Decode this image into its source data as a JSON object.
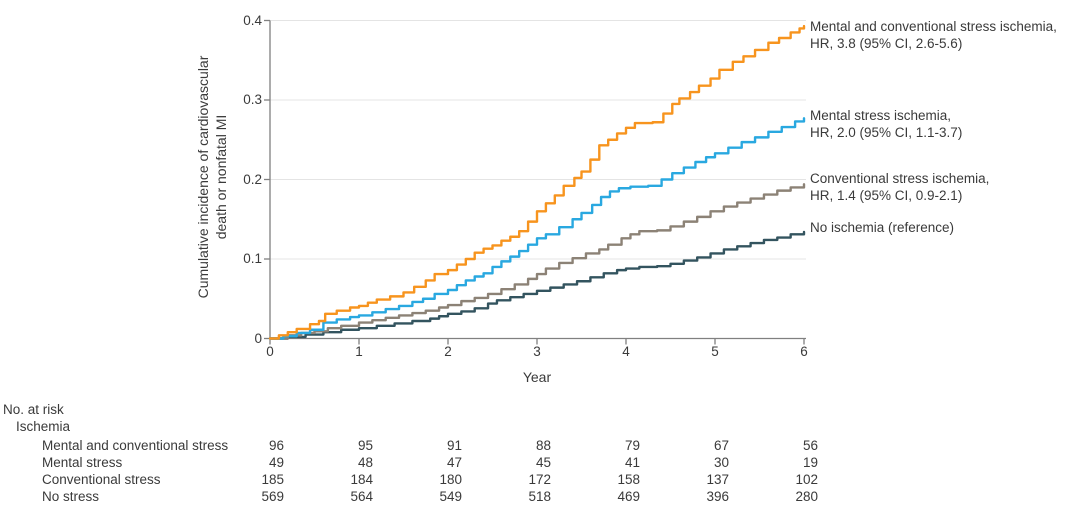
{
  "colors": {
    "mental_and_conventional": "#F7941E",
    "mental": "#29A8E0",
    "conventional": "#8C8276",
    "no_ischemia": "#33545F",
    "grid": "#E4E4E4",
    "axis": "#808080",
    "text": "#3A3A3A"
  },
  "chart_data": {
    "type": "line",
    "subtype": "cumulative-incidence-step-curves",
    "title": "",
    "xlabel": "Year",
    "ylabel": "Cumulative incidence of cardiovascular death or nonfatal MI",
    "ylabel_lines": [
      "Cumulative incidence of cardiovascular",
      "death or nonfatal MI"
    ],
    "xlim": [
      0,
      6
    ],
    "ylim": [
      0,
      0.4
    ],
    "x_ticks": [
      0,
      1,
      2,
      3,
      4,
      5,
      6
    ],
    "x_tick_labels": [
      "0",
      "1",
      "2",
      "3",
      "4",
      "5",
      "6"
    ],
    "y_ticks": [
      0,
      0.1,
      0.2,
      0.3,
      0.4
    ],
    "y_tick_labels": [
      "0",
      "0.1",
      "0.2",
      "0.3",
      "0.4"
    ],
    "grid": "horizontal",
    "legend_position": "right of curve ends",
    "series": [
      {
        "name": "Mental and conventional stress ischemia",
        "legend_lines": [
          "Mental and conventional stress ischemia,",
          "HR, 3.8 (95% CI, 2.6-5.6)"
        ],
        "hr": "3.8",
        "ci": "2.6-5.6",
        "color": "#F7941E",
        "points": [
          [
            0,
            0
          ],
          [
            0.1,
            0.004
          ],
          [
            0.2,
            0.008
          ],
          [
            0.3,
            0.012
          ],
          [
            0.45,
            0.018
          ],
          [
            0.55,
            0.022
          ],
          [
            0.62,
            0.031
          ],
          [
            0.75,
            0.035
          ],
          [
            0.9,
            0.039
          ],
          [
            1.0,
            0.041
          ],
          [
            1.1,
            0.045
          ],
          [
            1.2,
            0.049
          ],
          [
            1.35,
            0.053
          ],
          [
            1.5,
            0.058
          ],
          [
            1.62,
            0.065
          ],
          [
            1.75,
            0.073
          ],
          [
            1.85,
            0.081
          ],
          [
            2.0,
            0.086
          ],
          [
            2.1,
            0.093
          ],
          [
            2.2,
            0.1
          ],
          [
            2.3,
            0.108
          ],
          [
            2.4,
            0.113
          ],
          [
            2.5,
            0.117
          ],
          [
            2.6,
            0.123
          ],
          [
            2.7,
            0.128
          ],
          [
            2.8,
            0.135
          ],
          [
            2.9,
            0.147
          ],
          [
            3.0,
            0.16
          ],
          [
            3.1,
            0.17
          ],
          [
            3.2,
            0.18
          ],
          [
            3.3,
            0.192
          ],
          [
            3.42,
            0.202
          ],
          [
            3.5,
            0.21
          ],
          [
            3.6,
            0.225
          ],
          [
            3.7,
            0.243
          ],
          [
            3.8,
            0.25
          ],
          [
            3.9,
            0.258
          ],
          [
            4.0,
            0.265
          ],
          [
            4.1,
            0.271
          ],
          [
            4.3,
            0.272
          ],
          [
            4.42,
            0.283
          ],
          [
            4.52,
            0.295
          ],
          [
            4.6,
            0.302
          ],
          [
            4.72,
            0.31
          ],
          [
            4.82,
            0.318
          ],
          [
            4.95,
            0.327
          ],
          [
            5.05,
            0.338
          ],
          [
            5.2,
            0.348
          ],
          [
            5.32,
            0.355
          ],
          [
            5.45,
            0.363
          ],
          [
            5.6,
            0.372
          ],
          [
            5.72,
            0.378
          ],
          [
            5.85,
            0.385
          ],
          [
            5.95,
            0.39
          ],
          [
            6.0,
            0.393
          ]
        ]
      },
      {
        "name": "Mental stress ischemia",
        "legend_lines": [
          "Mental stress ischemia,",
          "HR, 2.0 (95% CI, 1.1-3.7)"
        ],
        "hr": "2.0",
        "ci": "1.1-3.7",
        "color": "#29A8E0",
        "points": [
          [
            0,
            0
          ],
          [
            0.15,
            0.003
          ],
          [
            0.3,
            0.007
          ],
          [
            0.45,
            0.011
          ],
          [
            0.6,
            0.02
          ],
          [
            0.75,
            0.024
          ],
          [
            0.9,
            0.027
          ],
          [
            1.0,
            0.029
          ],
          [
            1.15,
            0.033
          ],
          [
            1.3,
            0.037
          ],
          [
            1.45,
            0.041
          ],
          [
            1.6,
            0.046
          ],
          [
            1.72,
            0.05
          ],
          [
            1.85,
            0.056
          ],
          [
            2.0,
            0.061
          ],
          [
            2.1,
            0.067
          ],
          [
            2.2,
            0.073
          ],
          [
            2.3,
            0.078
          ],
          [
            2.4,
            0.082
          ],
          [
            2.5,
            0.09
          ],
          [
            2.6,
            0.097
          ],
          [
            2.7,
            0.103
          ],
          [
            2.8,
            0.11
          ],
          [
            2.9,
            0.118
          ],
          [
            3.0,
            0.126
          ],
          [
            3.1,
            0.131
          ],
          [
            3.25,
            0.14
          ],
          [
            3.4,
            0.15
          ],
          [
            3.5,
            0.158
          ],
          [
            3.62,
            0.168
          ],
          [
            3.72,
            0.178
          ],
          [
            3.82,
            0.185
          ],
          [
            3.92,
            0.189
          ],
          [
            4.05,
            0.191
          ],
          [
            4.25,
            0.192
          ],
          [
            4.4,
            0.2
          ],
          [
            4.52,
            0.208
          ],
          [
            4.65,
            0.215
          ],
          [
            4.78,
            0.222
          ],
          [
            4.9,
            0.228
          ],
          [
            5.0,
            0.233
          ],
          [
            5.15,
            0.24
          ],
          [
            5.3,
            0.247
          ],
          [
            5.45,
            0.253
          ],
          [
            5.6,
            0.26
          ],
          [
            5.75,
            0.266
          ],
          [
            5.9,
            0.273
          ],
          [
            6.0,
            0.277
          ]
        ]
      },
      {
        "name": "Conventional stress ischemia",
        "legend_lines": [
          "Conventional stress ischemia,",
          "HR, 1.4 (95% CI, 0.9-2.1)"
        ],
        "hr": "1.4",
        "ci": "0.9-2.1",
        "color": "#8C8276",
        "points": [
          [
            0,
            0
          ],
          [
            0.2,
            0.004
          ],
          [
            0.35,
            0.007
          ],
          [
            0.5,
            0.009
          ],
          [
            0.65,
            0.013
          ],
          [
            0.8,
            0.016
          ],
          [
            1.0,
            0.02
          ],
          [
            1.15,
            0.023
          ],
          [
            1.3,
            0.026
          ],
          [
            1.45,
            0.029
          ],
          [
            1.6,
            0.032
          ],
          [
            1.75,
            0.035
          ],
          [
            1.9,
            0.039
          ],
          [
            2.0,
            0.042
          ],
          [
            2.15,
            0.047
          ],
          [
            2.3,
            0.051
          ],
          [
            2.45,
            0.056
          ],
          [
            2.6,
            0.062
          ],
          [
            2.75,
            0.068
          ],
          [
            2.9,
            0.075
          ],
          [
            3.0,
            0.081
          ],
          [
            3.1,
            0.088
          ],
          [
            3.25,
            0.095
          ],
          [
            3.4,
            0.101
          ],
          [
            3.55,
            0.107
          ],
          [
            3.7,
            0.112
          ],
          [
            3.8,
            0.118
          ],
          [
            3.95,
            0.126
          ],
          [
            4.05,
            0.131
          ],
          [
            4.15,
            0.135
          ],
          [
            4.35,
            0.136
          ],
          [
            4.5,
            0.141
          ],
          [
            4.65,
            0.147
          ],
          [
            4.8,
            0.153
          ],
          [
            4.95,
            0.16
          ],
          [
            5.1,
            0.166
          ],
          [
            5.25,
            0.171
          ],
          [
            5.4,
            0.176
          ],
          [
            5.55,
            0.181
          ],
          [
            5.7,
            0.186
          ],
          [
            5.85,
            0.19
          ],
          [
            6.0,
            0.194
          ]
        ]
      },
      {
        "name": "No ischemia (reference)",
        "legend_lines": [
          "No ischemia (reference)"
        ],
        "hr": "",
        "ci": "",
        "color": "#33545F",
        "points": [
          [
            0,
            0
          ],
          [
            0.2,
            0.002
          ],
          [
            0.4,
            0.005
          ],
          [
            0.6,
            0.008
          ],
          [
            0.8,
            0.011
          ],
          [
            1.0,
            0.013
          ],
          [
            1.2,
            0.016
          ],
          [
            1.4,
            0.019
          ],
          [
            1.6,
            0.022
          ],
          [
            1.8,
            0.025
          ],
          [
            1.9,
            0.028
          ],
          [
            2.0,
            0.031
          ],
          [
            2.15,
            0.034
          ],
          [
            2.3,
            0.038
          ],
          [
            2.45,
            0.044
          ],
          [
            2.55,
            0.048
          ],
          [
            2.7,
            0.052
          ],
          [
            2.85,
            0.056
          ],
          [
            3.0,
            0.06
          ],
          [
            3.15,
            0.064
          ],
          [
            3.3,
            0.068
          ],
          [
            3.45,
            0.072
          ],
          [
            3.6,
            0.077
          ],
          [
            3.75,
            0.082
          ],
          [
            3.9,
            0.086
          ],
          [
            4.0,
            0.088
          ],
          [
            4.15,
            0.09
          ],
          [
            4.35,
            0.091
          ],
          [
            4.5,
            0.094
          ],
          [
            4.65,
            0.098
          ],
          [
            4.8,
            0.102
          ],
          [
            4.95,
            0.107
          ],
          [
            5.1,
            0.112
          ],
          [
            5.25,
            0.116
          ],
          [
            5.4,
            0.12
          ],
          [
            5.55,
            0.124
          ],
          [
            5.7,
            0.127
          ],
          [
            5.85,
            0.131
          ],
          [
            6.0,
            0.134
          ]
        ]
      }
    ],
    "risk_table": {
      "title": "No. at risk",
      "subtitle": "Ischemia",
      "columns": [
        0,
        1,
        2,
        3,
        4,
        5,
        6
      ],
      "rows": [
        {
          "label": "Mental and conventional stress",
          "values": [
            96,
            95,
            91,
            88,
            79,
            67,
            56
          ]
        },
        {
          "label": "Mental stress",
          "values": [
            49,
            48,
            47,
            45,
            41,
            30,
            19
          ]
        },
        {
          "label": "Conventional stress",
          "values": [
            185,
            184,
            180,
            172,
            158,
            137,
            102
          ]
        },
        {
          "label": "No stress",
          "values": [
            569,
            564,
            549,
            518,
            469,
            396,
            280
          ]
        }
      ]
    }
  }
}
